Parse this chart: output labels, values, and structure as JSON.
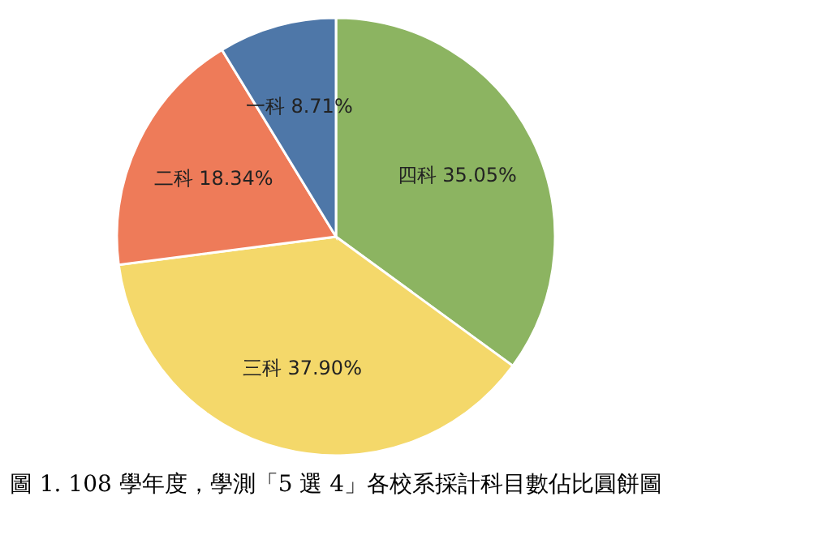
{
  "chart_data": {
    "type": "pie",
    "title": "圖 1. 108 學年度，學測「5 選 4」各校系採計科目數佔比圓餅圖",
    "categories": [
      "四科",
      "三科",
      "二科",
      "一科"
    ],
    "values": [
      35.05,
      37.9,
      18.34,
      8.71
    ],
    "value_labels": [
      "35.05%",
      "37.90%",
      "18.34%",
      "8.71%"
    ],
    "colors": [
      "#8cb461",
      "#f4d86a",
      "#ee7b59",
      "#4e77a8"
    ],
    "legend": false
  }
}
